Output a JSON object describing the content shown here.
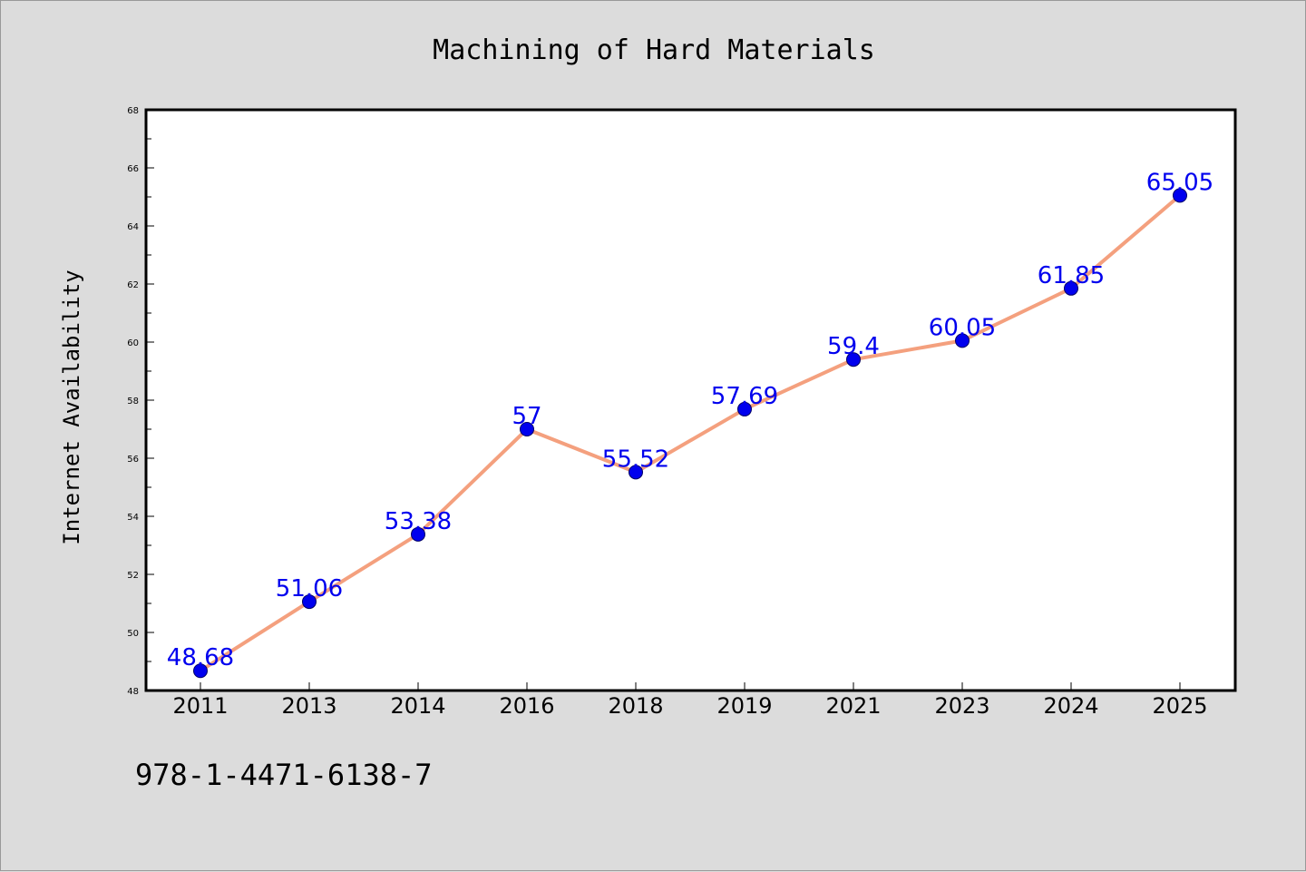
{
  "chart_data": {
    "type": "line",
    "title": "Machining of Hard Materials",
    "xlabel": "",
    "ylabel": "Internet Availability",
    "categories": [
      "2011",
      "2013",
      "2014",
      "2016",
      "2018",
      "2019",
      "2021",
      "2023",
      "2024",
      "2025"
    ],
    "series": [
      {
        "values": [
          48.68,
          51.06,
          53.38,
          57,
          55.52,
          57.69,
          59.4,
          60.05,
          61.85,
          65.05
        ],
        "labels": [
          "48.68",
          "51.06",
          "53.38",
          "57",
          "55.52",
          "57.69",
          "59.4",
          "60.05",
          "61.85",
          "65.05"
        ],
        "line_color": "#f4a07e",
        "marker_color": "#0000ee"
      }
    ],
    "ylim": [
      48,
      68
    ],
    "yticks": [
      "48",
      "50",
      "52",
      "54",
      "56",
      "58",
      "60",
      "62",
      "64",
      "66",
      "68"
    ],
    "grid": false,
    "legend": "none"
  },
  "footer": {
    "isbn": "978-1-4471-6138-7"
  },
  "colors": {
    "background": "#dcdcdc",
    "plot_background": "#ffffff"
  }
}
